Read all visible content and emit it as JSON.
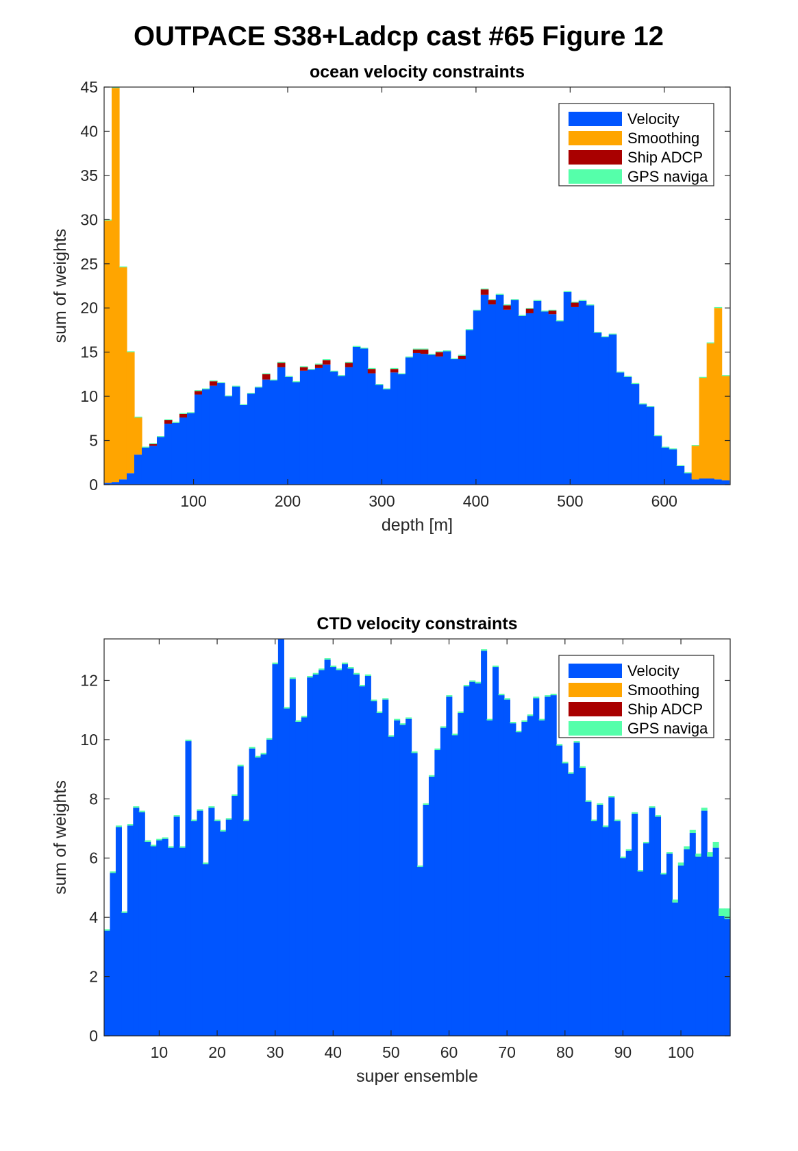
{
  "figure": {
    "title": "OUTPACE S38+Ladcp cast #65  Figure 12"
  },
  "colors": {
    "velocity": "#0055ff",
    "smoothing": "#ffa500",
    "ship_adcp": "#a90000",
    "gps": "#55ffaa",
    "axis": "#262626"
  },
  "chart_data": [
    {
      "type": "bar",
      "stacked": true,
      "title": "ocean velocity constraints",
      "xlabel": "depth [m]",
      "ylabel": "sum of weights",
      "xlim": [
        5,
        670
      ],
      "ylim": [
        0,
        45
      ],
      "xticks": [
        100,
        200,
        300,
        400,
        500,
        600
      ],
      "yticks": [
        0,
        5,
        10,
        15,
        20,
        25,
        30,
        35,
        40,
        45
      ],
      "grid": false,
      "legend": {
        "position": "top-right",
        "entries": [
          "Velocity",
          "Smoothing",
          "Ship ADCP",
          "GPS naviga"
        ]
      },
      "bin_width": 8,
      "x": [
        9,
        17,
        25,
        33,
        41,
        49,
        57,
        65,
        73,
        81,
        89,
        97,
        105,
        113,
        121,
        129,
        137,
        145,
        153,
        161,
        169,
        177,
        185,
        193,
        201,
        209,
        217,
        225,
        233,
        241,
        249,
        257,
        265,
        273,
        281,
        289,
        297,
        305,
        313,
        321,
        329,
        337,
        345,
        353,
        361,
        369,
        377,
        385,
        393,
        401,
        409,
        417,
        425,
        433,
        441,
        449,
        457,
        465,
        473,
        481,
        489,
        497,
        505,
        513,
        521,
        529,
        537,
        545,
        553,
        561,
        569,
        577,
        585,
        593,
        601,
        609,
        617,
        625,
        633,
        641,
        649,
        657,
        665
      ],
      "series": [
        {
          "name": "Velocity",
          "values": [
            0.2,
            0.3,
            0.6,
            1.3,
            3.4,
            4.2,
            4.4,
            5.4,
            6.9,
            7.0,
            7.6,
            8.1,
            10.2,
            10.8,
            11.2,
            11.5,
            10.0,
            11.1,
            9.0,
            10.3,
            11.0,
            11.9,
            11.8,
            13.3,
            12.2,
            11.6,
            12.9,
            13.0,
            13.2,
            13.6,
            12.8,
            12.3,
            13.3,
            15.6,
            15.4,
            12.6,
            11.3,
            10.8,
            12.7,
            12.5,
            14.4,
            14.9,
            14.8,
            14.7,
            14.5,
            15.1,
            14.2,
            14.2,
            17.5,
            19.7,
            21.5,
            20.4,
            21.5,
            19.8,
            20.9,
            19.1,
            19.4,
            20.8,
            19.6,
            19.3,
            18.5,
            21.8,
            20.1,
            20.8,
            20.3,
            17.2,
            16.7,
            17.0,
            12.7,
            12.2,
            11.4,
            9.1,
            8.8,
            5.5,
            4.2,
            4.0,
            2.1,
            1.3,
            0.6,
            0.7,
            0.7,
            0.6,
            0.5
          ]
        },
        {
          "name": "Smoothing",
          "values": [
            29.7,
            44.6,
            24.0,
            13.7,
            4.2,
            0,
            0,
            0,
            0,
            0,
            0,
            0,
            0,
            0,
            0,
            0,
            0,
            0,
            0,
            0,
            0,
            0,
            0,
            0,
            0,
            0,
            0,
            0,
            0,
            0,
            0,
            0,
            0,
            0,
            0,
            0,
            0,
            0,
            0,
            0,
            0,
            0,
            0,
            0,
            0,
            0,
            0,
            0,
            0,
            0,
            0,
            0,
            0,
            0,
            0,
            0,
            0,
            0,
            0,
            0,
            0,
            0,
            0,
            0,
            0,
            0,
            0,
            0,
            0,
            0,
            0,
            0,
            0,
            0,
            0,
            0,
            0,
            0,
            3.8,
            11.4,
            15.3,
            19.4,
            11.8
          ]
        },
        {
          "name": "Ship ADCP",
          "values": [
            0,
            0,
            0,
            0,
            0,
            0,
            0.2,
            0,
            0.4,
            0,
            0.4,
            0,
            0.4,
            0,
            0.5,
            0,
            0,
            0,
            0,
            0,
            0,
            0.6,
            0,
            0.5,
            0,
            0,
            0.4,
            0,
            0.4,
            0.5,
            0,
            0,
            0.5,
            0,
            0,
            0.5,
            0,
            0,
            0.4,
            0,
            0,
            0.4,
            0.5,
            0,
            0.5,
            0,
            0,
            0.4,
            0,
            0,
            0.6,
            0.5,
            0,
            0.5,
            0,
            0,
            0.5,
            0,
            0,
            0.4,
            0,
            0,
            0.5,
            0,
            0,
            0,
            0,
            0,
            0,
            0,
            0,
            0,
            0,
            0,
            0,
            0,
            0,
            0,
            0,
            0,
            0,
            0,
            0
          ]
        },
        {
          "name": "GPS naviga",
          "values": [
            0.1,
            0.1,
            0.1,
            0.1,
            0.1,
            0.1,
            0.1,
            0.1,
            0.1,
            0.1,
            0.1,
            0.1,
            0.1,
            0.1,
            0.1,
            0.1,
            0.1,
            0.1,
            0.1,
            0.1,
            0.1,
            0.1,
            0.1,
            0.1,
            0.1,
            0.1,
            0.1,
            0.1,
            0.1,
            0.1,
            0.1,
            0.1,
            0.1,
            0.1,
            0.1,
            0.1,
            0.1,
            0.1,
            0.1,
            0.1,
            0.1,
            0.1,
            0.1,
            0.1,
            0.1,
            0.1,
            0.1,
            0.1,
            0.1,
            0.1,
            0.1,
            0.1,
            0.1,
            0.1,
            0.1,
            0.1,
            0.1,
            0.1,
            0.1,
            0.1,
            0.1,
            0.1,
            0.1,
            0.1,
            0.1,
            0.1,
            0.1,
            0.1,
            0.1,
            0.1,
            0.1,
            0.1,
            0.1,
            0.1,
            0.1,
            0.1,
            0.1,
            0.1,
            0.1,
            0.1,
            0.1,
            0.1,
            0.1
          ]
        }
      ]
    },
    {
      "type": "bar",
      "stacked": true,
      "title": "CTD velocity constraints",
      "xlabel": "super ensemble",
      "ylabel": "sum of weights",
      "xlim": [
        0.5,
        108.5
      ],
      "ylim": [
        0,
        13.4
      ],
      "xticks": [
        10,
        20,
        30,
        40,
        50,
        60,
        70,
        80,
        90,
        100
      ],
      "yticks": [
        0,
        2,
        4,
        6,
        8,
        10,
        12
      ],
      "grid": false,
      "legend": {
        "position": "top-right",
        "entries": [
          "Velocity",
          "Smoothing",
          "Ship ADCP",
          "GPS naviga"
        ]
      },
      "bin_width": 1,
      "x": [
        1,
        2,
        3,
        4,
        5,
        6,
        7,
        8,
        9,
        10,
        11,
        12,
        13,
        14,
        15,
        16,
        17,
        18,
        19,
        20,
        21,
        22,
        23,
        24,
        25,
        26,
        27,
        28,
        29,
        30,
        31,
        32,
        33,
        34,
        35,
        36,
        37,
        38,
        39,
        40,
        41,
        42,
        43,
        44,
        45,
        46,
        47,
        48,
        49,
        50,
        51,
        52,
        53,
        54,
        55,
        56,
        57,
        58,
        59,
        60,
        61,
        62,
        63,
        64,
        65,
        66,
        67,
        68,
        69,
        70,
        71,
        72,
        73,
        74,
        75,
        76,
        77,
        78,
        79,
        80,
        81,
        82,
        83,
        84,
        85,
        86,
        87,
        88,
        89,
        90,
        91,
        92,
        93,
        94,
        95,
        96,
        97,
        98,
        99,
        100,
        101,
        102,
        103,
        104,
        105,
        106,
        107,
        108
      ],
      "series": [
        {
          "name": "Velocity",
          "values": [
            3.55,
            5.5,
            7.05,
            4.15,
            7.1,
            7.7,
            7.55,
            6.55,
            6.4,
            6.6,
            6.65,
            6.35,
            7.4,
            6.35,
            9.95,
            7.25,
            7.6,
            5.8,
            7.7,
            7.25,
            6.9,
            7.3,
            8.1,
            9.1,
            7.25,
            9.7,
            9.4,
            9.5,
            10.0,
            12.55,
            13.4,
            11.05,
            12.05,
            10.6,
            10.75,
            12.1,
            12.2,
            12.35,
            12.7,
            12.45,
            12.35,
            12.55,
            12.4,
            12.2,
            11.8,
            12.15,
            11.3,
            10.9,
            11.35,
            10.1,
            10.65,
            10.5,
            10.7,
            9.55,
            5.7,
            7.8,
            8.75,
            9.65,
            10.4,
            11.45,
            10.15,
            10.9,
            11.8,
            11.95,
            11.9,
            13.0,
            10.65,
            12.45,
            11.5,
            11.35,
            10.55,
            10.25,
            10.6,
            10.8,
            11.4,
            10.65,
            11.45,
            11.5,
            9.8,
            9.2,
            8.85,
            9.9,
            9.05,
            7.9,
            7.25,
            7.8,
            7.05,
            8.05,
            7.25,
            6.0,
            6.25,
            7.5,
            5.55,
            6.5,
            7.7,
            7.4,
            5.45,
            6.15,
            4.5,
            5.75,
            6.3,
            6.85,
            6.05,
            7.6,
            6.05,
            6.35,
            4.05,
            3.95
          ]
        },
        {
          "name": "Smoothing",
          "values": [
            0,
            0,
            0,
            0,
            0,
            0,
            0,
            0,
            0,
            0,
            0,
            0,
            0,
            0,
            0,
            0,
            0,
            0,
            0,
            0,
            0,
            0,
            0,
            0,
            0,
            0,
            0,
            0,
            0,
            0,
            0,
            0,
            0,
            0,
            0,
            0,
            0,
            0,
            0,
            0,
            0,
            0,
            0,
            0,
            0,
            0,
            0,
            0,
            0,
            0,
            0,
            0,
            0,
            0,
            0,
            0,
            0,
            0,
            0,
            0,
            0,
            0,
            0,
            0,
            0,
            0,
            0,
            0,
            0,
            0,
            0,
            0,
            0,
            0,
            0,
            0,
            0,
            0,
            0,
            0,
            0,
            0,
            0,
            0,
            0,
            0,
            0,
            0,
            0,
            0,
            0,
            0,
            0,
            0,
            0,
            0,
            0,
            0,
            0,
            0,
            0,
            0,
            0,
            0,
            0,
            0,
            0,
            0
          ]
        },
        {
          "name": "Ship ADCP",
          "values": [
            0,
            0,
            0,
            0,
            0,
            0,
            0,
            0,
            0,
            0,
            0,
            0,
            0,
            0,
            0,
            0,
            0,
            0,
            0,
            0,
            0,
            0,
            0,
            0,
            0,
            0,
            0,
            0,
            0,
            0,
            0,
            0,
            0,
            0,
            0,
            0,
            0,
            0,
            0,
            0,
            0,
            0,
            0,
            0,
            0,
            0,
            0,
            0,
            0,
            0,
            0,
            0,
            0,
            0,
            0,
            0,
            0,
            0,
            0,
            0,
            0,
            0,
            0,
            0,
            0,
            0,
            0,
            0,
            0,
            0,
            0,
            0,
            0,
            0,
            0,
            0,
            0,
            0,
            0,
            0,
            0,
            0,
            0,
            0,
            0,
            0,
            0,
            0,
            0,
            0,
            0,
            0,
            0,
            0,
            0,
            0,
            0,
            0,
            0,
            0,
            0,
            0,
            0,
            0,
            0,
            0,
            0,
            0
          ]
        },
        {
          "name": "GPS naviga",
          "values": [
            0.05,
            0.05,
            0.05,
            0.05,
            0.05,
            0.05,
            0.05,
            0.05,
            0.05,
            0.05,
            0.05,
            0.05,
            0.05,
            0.05,
            0.05,
            0.05,
            0.05,
            0.05,
            0.05,
            0.05,
            0.05,
            0.05,
            0.05,
            0.05,
            0.05,
            0.05,
            0.05,
            0.05,
            0.05,
            0.05,
            0.05,
            0.05,
            0.05,
            0.05,
            0.05,
            0.05,
            0.05,
            0.05,
            0.05,
            0.05,
            0.05,
            0.05,
            0.05,
            0.05,
            0.05,
            0.05,
            0.05,
            0.05,
            0.05,
            0.05,
            0.05,
            0.05,
            0.05,
            0.05,
            0.05,
            0.05,
            0.05,
            0.05,
            0.05,
            0.05,
            0.05,
            0.05,
            0.05,
            0.05,
            0.05,
            0.05,
            0.05,
            0.05,
            0.05,
            0.05,
            0.05,
            0.05,
            0.05,
            0.05,
            0.05,
            0.05,
            0.05,
            0.05,
            0.05,
            0.05,
            0.05,
            0.05,
            0.05,
            0.05,
            0.05,
            0.05,
            0.05,
            0.05,
            0.05,
            0.05,
            0.05,
            0.05,
            0.05,
            0.05,
            0.05,
            0.05,
            0.05,
            0.05,
            0.1,
            0.1,
            0.1,
            0.1,
            0.1,
            0.1,
            0.15,
            0.2,
            0.25,
            0.35
          ]
        }
      ]
    }
  ]
}
